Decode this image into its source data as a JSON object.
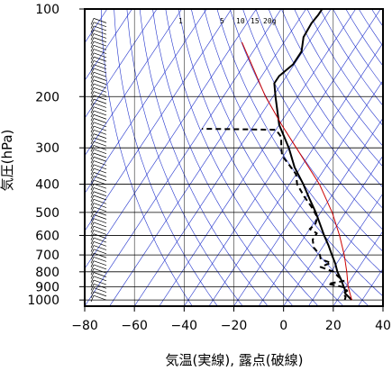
{
  "chart_data": {
    "type": "line",
    "title": "",
    "xlabel": "気温(実線), 露点(破線)",
    "ylabel": "気圧(hPa)",
    "xlim": [
      -80,
      40
    ],
    "ylim": [
      1050,
      100
    ],
    "y_scale": "log",
    "x_ticks": [
      "−80",
      "−60",
      "−40",
      "−20",
      "0",
      "20",
      "40"
    ],
    "x_tick_values": [
      -80,
      -60,
      -40,
      -20,
      0,
      20,
      40
    ],
    "y_ticks": [
      "100",
      "200",
      "300",
      "400",
      "500",
      "600",
      "700",
      "800",
      "900",
      "1000"
    ],
    "y_tick_values": [
      100,
      200,
      300,
      400,
      500,
      600,
      700,
      800,
      900,
      1000
    ],
    "mixing_ratio_labels": [
      "1",
      "5",
      "10",
      "15",
      "20g"
    ],
    "skew": true,
    "grid": true,
    "colors": {
      "temperature": "#000000",
      "dewpoint": "#000000",
      "parcel": "#cc0000",
      "background_lines": "#2233cc",
      "grid": "#000000"
    },
    "series": [
      {
        "name": "",
        "style": "solid",
        "points": [
          {
            "p": 1000,
            "t": 25.8
          },
          {
            "p": 985,
            "t": 24.5
          },
          {
            "p": 950,
            "t": 21.5
          },
          {
            "p": 925,
            "t": 20.5
          },
          {
            "p": 900,
            "t": 19.0
          },
          {
            "p": 850,
            "t": 16.0
          },
          {
            "p": 800,
            "t": 12.5
          },
          {
            "p": 750,
            "t": 9.5
          },
          {
            "p": 700,
            "t": 5.8
          },
          {
            "p": 650,
            "t": 2.0
          },
          {
            "p": 600,
            "t": -2.5
          },
          {
            "p": 550,
            "t": -7.0
          },
          {
            "p": 500,
            "t": -12.0
          },
          {
            "p": 450,
            "t": -18.0
          },
          {
            "p": 400,
            "t": -24.5
          },
          {
            "p": 350,
            "t": -32.5
          },
          {
            "p": 300,
            "t": -40.0
          },
          {
            "p": 250,
            "t": -50.0
          },
          {
            "p": 200,
            "t": -59.0
          },
          {
            "p": 180,
            "t": -63.0
          },
          {
            "p": 170,
            "t": -63.0
          },
          {
            "p": 155,
            "t": -60.5
          },
          {
            "p": 140,
            "t": -60.5
          },
          {
            "p": 125,
            "t": -63.5
          },
          {
            "p": 112,
            "t": -64.0
          },
          {
            "p": 105,
            "t": -63.5
          },
          {
            "p": 100,
            "t": -63.5
          }
        ]
      },
      {
        "name": "",
        "style": "dashed",
        "points": [
          {
            "p": 1000,
            "t": 23.0
          },
          {
            "p": 975,
            "t": 22.5
          },
          {
            "p": 950,
            "t": 20.5
          },
          {
            "p": 930,
            "t": 21.5
          },
          {
            "p": 905,
            "t": 19.5
          },
          {
            "p": 880,
            "t": 12.0
          },
          {
            "p": 860,
            "t": 17.5
          },
          {
            "p": 830,
            "t": 14.0
          },
          {
            "p": 800,
            "t": 11.0
          },
          {
            "p": 770,
            "t": 4.5
          },
          {
            "p": 745,
            "t": 7.5
          },
          {
            "p": 725,
            "t": 2.5
          },
          {
            "p": 700,
            "t": 1.0
          },
          {
            "p": 660,
            "t": -3.5
          },
          {
            "p": 620,
            "t": -6.0
          },
          {
            "p": 590,
            "t": -6.0
          },
          {
            "p": 570,
            "t": -10.0
          },
          {
            "p": 550,
            "t": -9.0
          },
          {
            "p": 520,
            "t": -10.0
          },
          {
            "p": 480,
            "t": -15.0
          },
          {
            "p": 440,
            "t": -21.0
          },
          {
            "p": 400,
            "t": -27.0
          },
          {
            "p": 370,
            "t": -30.0
          },
          {
            "p": 340,
            "t": -36.0
          },
          {
            "p": 320,
            "t": -40.5
          },
          {
            "p": 300,
            "t": -43.0
          },
          {
            "p": 275,
            "t": -46.0
          },
          {
            "p": 260,
            "t": -50.0
          },
          {
            "p": 258,
            "t": -80.0
          }
        ]
      },
      {
        "name": "",
        "style": "solid",
        "points": [
          {
            "p": 1000,
            "t": 25.8
          },
          {
            "p": 900,
            "t": 20.8
          },
          {
            "p": 800,
            "t": 16.3
          },
          {
            "p": 700,
            "t": 10.8
          },
          {
            "p": 600,
            "t": 3.7
          },
          {
            "p": 500,
            "t": -5.4
          },
          {
            "p": 400,
            "t": -18.0
          },
          {
            "p": 300,
            "t": -37.0
          },
          {
            "p": 250,
            "t": -49.0
          },
          {
            "p": 200,
            "t": -63.0
          },
          {
            "p": 150,
            "t": -79.0
          },
          {
            "p": 130,
            "t": -87.0
          }
        ]
      }
    ]
  }
}
